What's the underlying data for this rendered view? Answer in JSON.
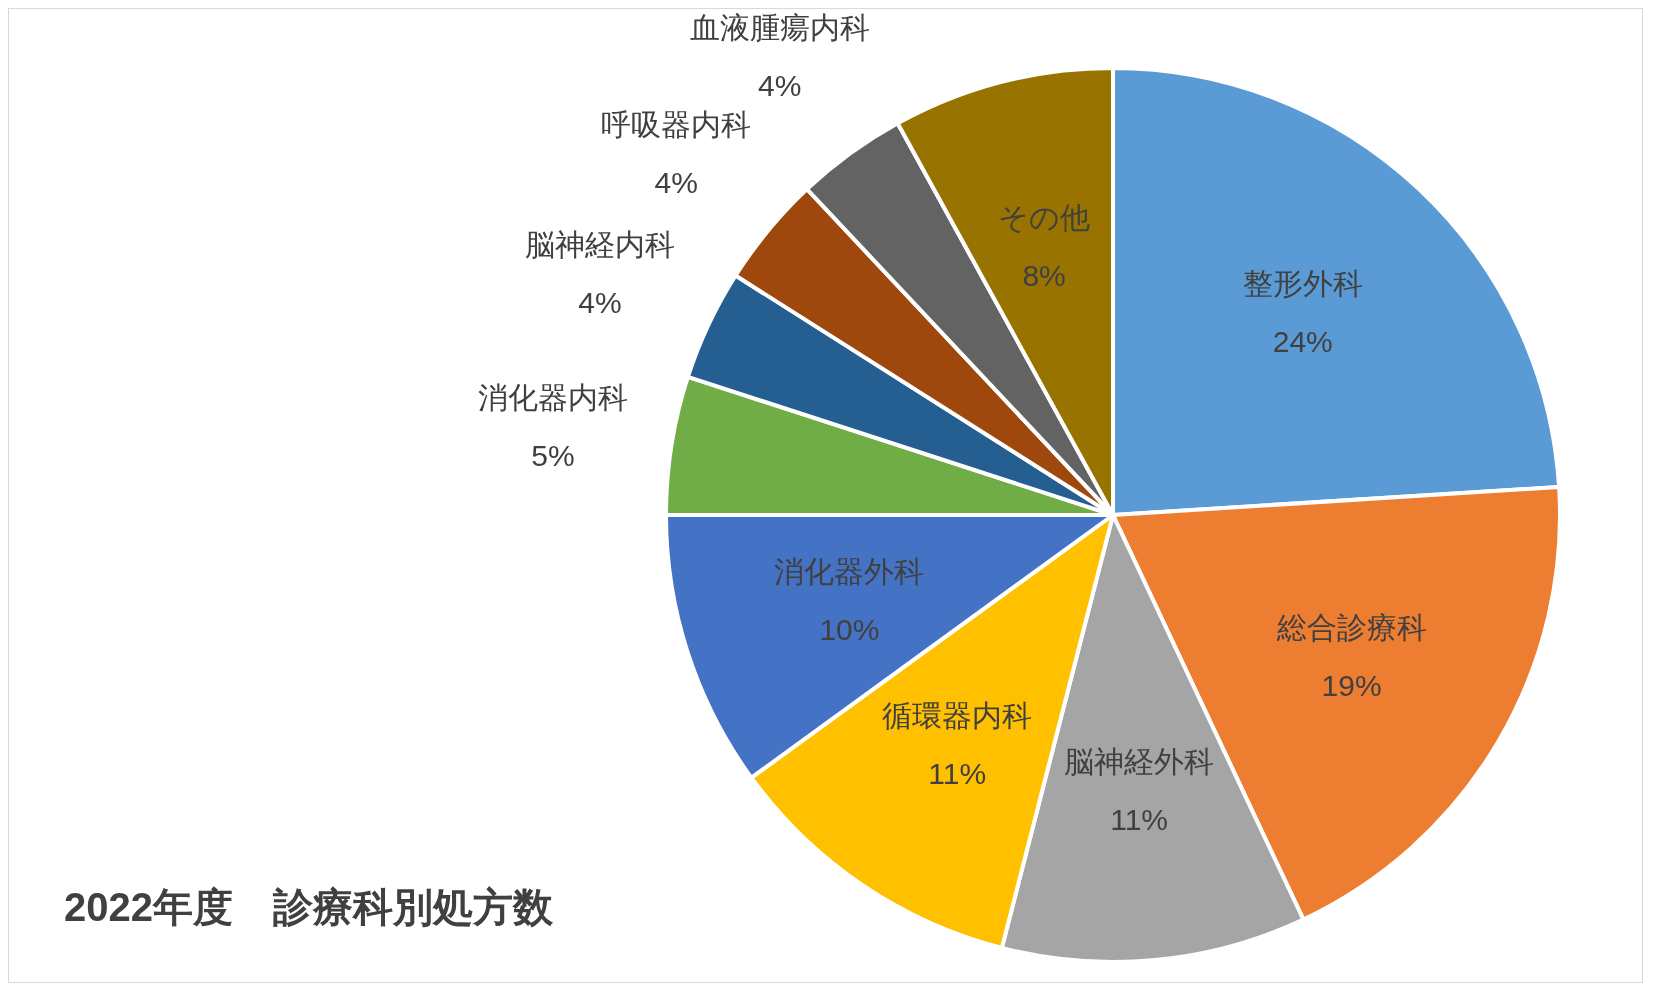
{
  "chart_data": {
    "type": "pie",
    "title": "2022年度　診療科別処方数",
    "categories": [
      "整形外科",
      "総合診療科",
      "脳神経外科",
      "循環器内科",
      "消化器外科",
      "消化器内科",
      "脳神経内科",
      "呼吸器内科",
      "血液腫瘍内科",
      "その他"
    ],
    "values": [
      24,
      19,
      11,
      11,
      10,
      5,
      4,
      4,
      4,
      8
    ],
    "value_labels": [
      "24%",
      "19%",
      "11%",
      "11%",
      "10%",
      "5%",
      "4%",
      "4%",
      "4%",
      "8%"
    ],
    "colors": [
      "#5b9bd5",
      "#ed7d31",
      "#a5a5a5",
      "#ffc000",
      "#4472c4",
      "#70ad47",
      "#255e91",
      "#9e480e",
      "#636363",
      "#997300"
    ],
    "legend": false
  }
}
